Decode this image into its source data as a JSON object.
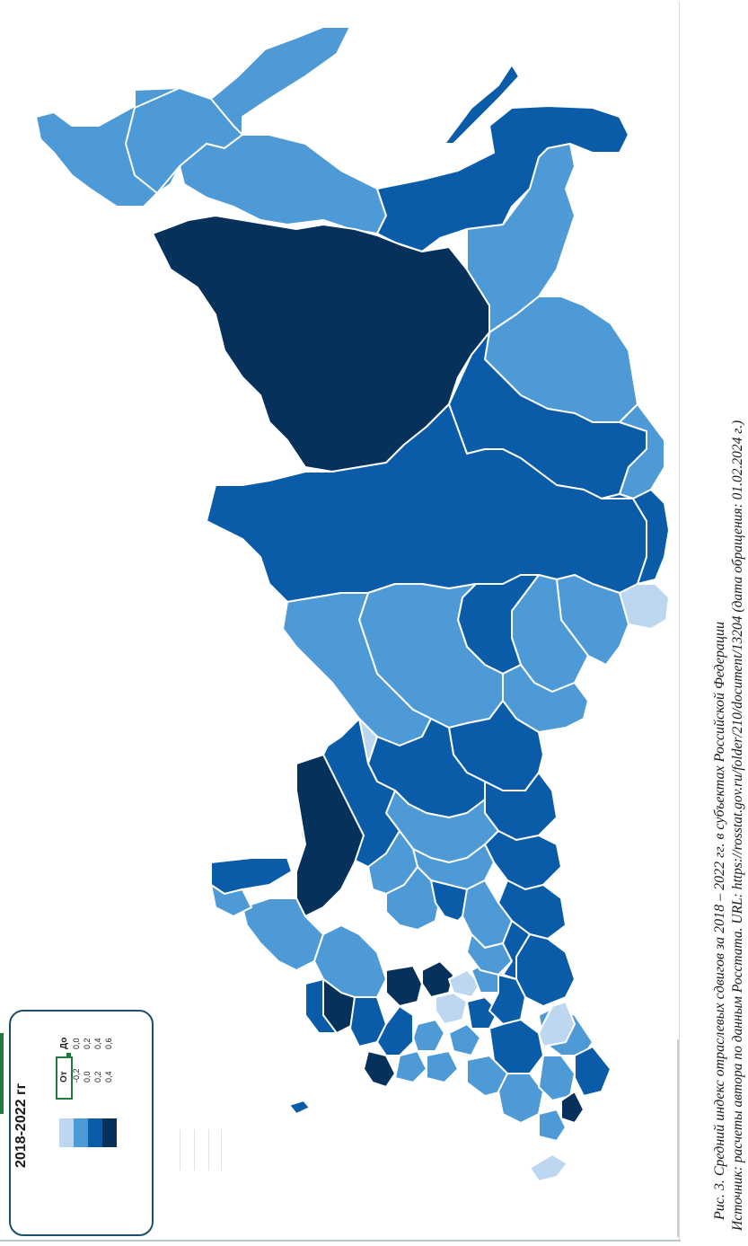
{
  "legend": {
    "title": "2018-2022 гг",
    "from_label": "От",
    "to_label": "До",
    "ranges": [
      {
        "from": "-0,2",
        "to": "0,0",
        "color": "#bcd7ef"
      },
      {
        "from": "0,0",
        "to": "0,2",
        "color": "#4d9ad6"
      },
      {
        "from": "0,2",
        "to": "0,4",
        "color": "#0a5ca8"
      },
      {
        "from": "0,4",
        "to": "0,6",
        "color": "#06315a"
      }
    ]
  },
  "caption": {
    "line1": "Рис. 3. Средний индекс отраслевых сдвигов за 2018 – 2022 гг. в субъектах Российской Федерации",
    "line2": "Источник: расчеты автора по данным Росстата. URL: https://rosstat.gov.ru/folder/210/document/13204 (дата обращения: 01.02.2024 г.)"
  },
  "colors": {
    "border": "#ffffff",
    "class_1": "#bcd7ef",
    "class_2": "#4d9ad6",
    "class_3": "#0a5ca8",
    "class_4": "#06315a"
  }
}
